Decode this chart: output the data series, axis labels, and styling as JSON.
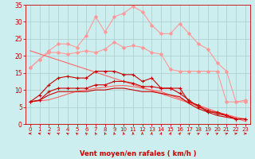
{
  "x": [
    0,
    1,
    2,
    3,
    4,
    5,
    6,
    7,
    8,
    9,
    10,
    11,
    12,
    13,
    14,
    15,
    16,
    17,
    18,
    19,
    20,
    21,
    22,
    23
  ],
  "series": [
    {
      "name": "light_pink_upper",
      "color": "#FF9999",
      "linewidth": 0.8,
      "marker": "D",
      "markersize": 2.0,
      "y": [
        16.5,
        19.0,
        21.5,
        23.5,
        23.5,
        22.5,
        26.0,
        31.5,
        27.0,
        31.5,
        32.5,
        34.5,
        33.0,
        29.0,
        26.5,
        26.5,
        29.5,
        26.5,
        23.5,
        22.0,
        18.0,
        15.5,
        6.5,
        7.0
      ]
    },
    {
      "name": "light_pink_lower",
      "color": "#FF9999",
      "linewidth": 0.8,
      "marker": "D",
      "markersize": 2.0,
      "y": [
        16.5,
        19.0,
        21.0,
        21.0,
        20.5,
        21.0,
        21.5,
        21.0,
        22.0,
        24.0,
        22.5,
        23.0,
        22.5,
        21.0,
        20.5,
        16.0,
        15.5,
        15.5,
        15.5,
        15.5,
        15.5,
        6.5,
        6.5,
        6.5
      ]
    },
    {
      "name": "pink_diagonal1",
      "color": "#FF6666",
      "linewidth": 0.8,
      "marker": null,
      "markersize": 0,
      "y": [
        21.5,
        20.6,
        19.7,
        18.8,
        17.9,
        17.0,
        16.1,
        15.2,
        14.3,
        13.4,
        12.5,
        11.6,
        10.7,
        9.8,
        8.9,
        8.0,
        7.1,
        6.2,
        5.3,
        4.4,
        3.5,
        2.6,
        1.7,
        0.8
      ]
    },
    {
      "name": "pink_diagonal2",
      "color": "#FF6666",
      "linewidth": 0.8,
      "marker": null,
      "markersize": 0,
      "y": [
        6.5,
        6.8,
        7.1,
        7.9,
        8.8,
        9.6,
        10.0,
        10.5,
        10.8,
        11.2,
        11.3,
        11.0,
        10.5,
        10.0,
        9.5,
        8.5,
        7.5,
        6.5,
        5.5,
        4.5,
        3.5,
        2.8,
        2.0,
        1.5
      ]
    },
    {
      "name": "red_upper",
      "color": "#CC0000",
      "linewidth": 0.8,
      "marker": "+",
      "markersize": 3.5,
      "y": [
        6.5,
        8.5,
        11.5,
        13.5,
        14.0,
        13.5,
        13.5,
        15.5,
        15.5,
        15.5,
        14.5,
        14.5,
        12.5,
        13.5,
        10.5,
        10.5,
        10.5,
        6.5,
        5.5,
        3.5,
        3.5,
        2.5,
        1.5,
        1.5
      ]
    },
    {
      "name": "red_mid1",
      "color": "#CC0000",
      "linewidth": 0.8,
      "marker": "+",
      "markersize": 3.5,
      "y": [
        6.5,
        7.0,
        9.5,
        10.5,
        10.5,
        10.5,
        10.5,
        11.5,
        11.5,
        12.5,
        12.5,
        12.0,
        11.0,
        11.0,
        10.5,
        10.5,
        9.0,
        7.0,
        5.0,
        4.0,
        3.0,
        2.5,
        1.5,
        1.5
      ]
    },
    {
      "name": "red_lower1",
      "color": "#CC0000",
      "linewidth": 0.8,
      "marker": null,
      "markersize": 0,
      "y": [
        6.5,
        7.0,
        8.5,
        9.5,
        9.5,
        9.5,
        9.5,
        10.0,
        10.0,
        10.5,
        10.5,
        10.0,
        9.5,
        9.5,
        9.0,
        8.5,
        8.0,
        6.0,
        4.5,
        3.5,
        2.5,
        2.0,
        1.5,
        1.5
      ]
    }
  ],
  "xlabel": "Vent moyen/en rafales ( km/h )",
  "xlim": [
    -0.5,
    23.5
  ],
  "ylim": [
    0,
    35
  ],
  "yticks": [
    0,
    5,
    10,
    15,
    20,
    25,
    30,
    35
  ],
  "xticks": [
    0,
    1,
    2,
    3,
    4,
    5,
    6,
    7,
    8,
    9,
    10,
    11,
    12,
    13,
    14,
    15,
    16,
    17,
    18,
    19,
    20,
    21,
    22,
    23
  ],
  "bg_color": "#CCEEEE",
  "grid_color": "#AACCCC",
  "tick_color": "#CC0000",
  "label_color": "#CC0000"
}
